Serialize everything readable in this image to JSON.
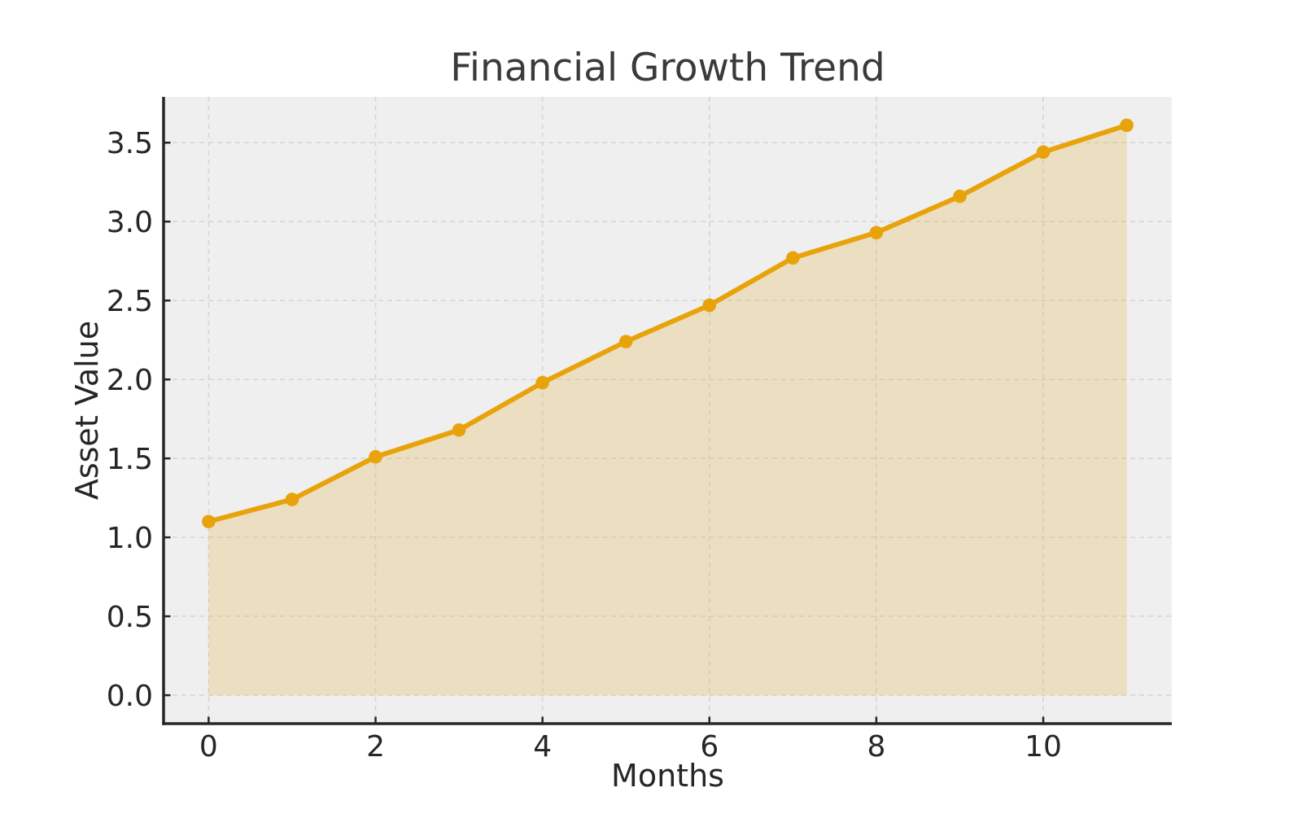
{
  "chart_data": {
    "type": "area",
    "title": "Financial Growth Trend",
    "xlabel": "Months",
    "ylabel": "Asset Value",
    "series": [
      {
        "name": "Asset Value",
        "x": [
          0,
          1,
          2,
          3,
          4,
          5,
          6,
          7,
          8,
          9,
          10,
          11
        ],
        "values": [
          1.1,
          1.24,
          1.51,
          1.68,
          1.98,
          2.24,
          2.47,
          2.77,
          2.93,
          3.16,
          3.44,
          3.61
        ]
      }
    ],
    "marker": "circle",
    "fill_to_zero": true,
    "xlim": [
      -0.54,
      11.54
    ],
    "ylim": [
      -0.18,
      3.79
    ],
    "xticks": [
      0,
      2,
      4,
      6,
      8,
      10
    ],
    "xtick_labels": [
      "0",
      "2",
      "4",
      "6",
      "8",
      "10"
    ],
    "yticks": [
      0.0,
      0.5,
      1.0,
      1.5,
      2.0,
      2.5,
      3.0,
      3.5
    ],
    "ytick_labels": [
      "0.0",
      "0.5",
      "1.0",
      "1.5",
      "2.0",
      "2.5",
      "3.0",
      "3.5"
    ],
    "grid": "dashed",
    "legend": "none",
    "colors": {
      "line": "#E8A30B",
      "fill": "rgba(228,185,86,0.30)",
      "plot_bg": "#EFEFEF",
      "grid": "#D6D6D6",
      "spine": "#262626",
      "tick_text": "#262626",
      "title_text": "#3A3A3A"
    }
  }
}
